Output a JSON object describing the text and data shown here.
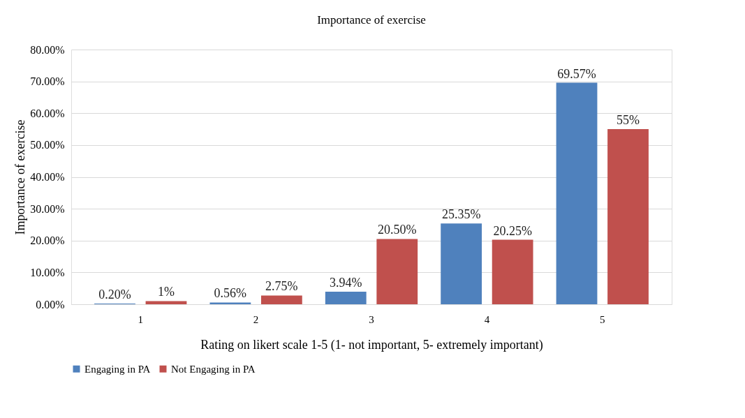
{
  "chart_data": {
    "type": "bar",
    "title": "Importance of exercise",
    "xlabel": "Rating on likert scale 1-5 (1- not important, 5- extremely important)",
    "ylabel": "Importance of exercise",
    "categories": [
      "1",
      "2",
      "3",
      "4",
      "5"
    ],
    "series": [
      {
        "name": "Engaging in PA",
        "color": "#4f81bd",
        "values": [
          0.2,
          0.56,
          3.94,
          25.35,
          69.57
        ],
        "value_labels": [
          "0.20%",
          "0.56%",
          "3.94%",
          "25.35%",
          "69.57%"
        ]
      },
      {
        "name": "Not Engaging in PA",
        "color": "#c0504d",
        "values": [
          1,
          2.75,
          20.5,
          20.25,
          55
        ],
        "value_labels": [
          "1%",
          "2.75%",
          "20.50%",
          "20.25%",
          "55%"
        ]
      }
    ],
    "ylim": [
      0,
      80
    ],
    "yticks": [
      {
        "value": 0,
        "label": "0.00%"
      },
      {
        "value": 10,
        "label": "10.00%"
      },
      {
        "value": 20,
        "label": "20.00%"
      },
      {
        "value": 30,
        "label": "30.00%"
      },
      {
        "value": 40,
        "label": "40.00%"
      },
      {
        "value": 50,
        "label": "50.00%"
      },
      {
        "value": 60,
        "label": "60.00%"
      },
      {
        "value": 70,
        "label": "70.00%"
      },
      {
        "value": 80,
        "label": "80.00%"
      }
    ],
    "grid": "y",
    "legend": "bottom"
  }
}
